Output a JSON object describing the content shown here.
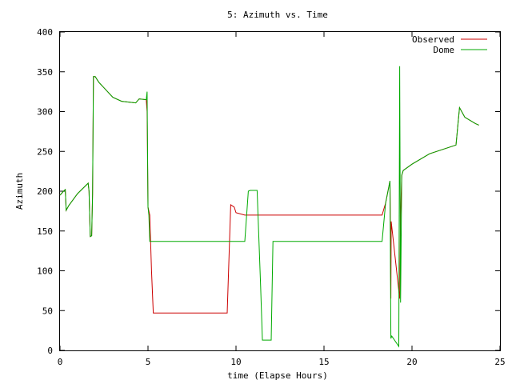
{
  "chart_data": {
    "type": "line",
    "title": "5: Azimuth vs. Time",
    "xlabel": "time (Elapse Hours)",
    "ylabel": "Azimuth",
    "xlim": [
      0,
      25
    ],
    "ylim": [
      0,
      400
    ],
    "xticks": [
      0,
      5,
      10,
      15,
      20,
      25
    ],
    "yticks": [
      0,
      50,
      100,
      150,
      200,
      250,
      300,
      350,
      400
    ],
    "grid": false,
    "legend_position": "top-right",
    "series": [
      {
        "name": "Observed",
        "color": "#cc0000",
        "x": [
          0.0,
          0.2,
          0.3,
          0.35,
          0.5,
          1.0,
          1.6,
          1.65,
          1.72,
          1.8,
          1.85,
          1.9,
          2.0,
          2.2,
          3.0,
          3.5,
          4.3,
          4.5,
          4.9,
          4.95,
          5.0,
          5.1,
          5.2,
          5.3,
          9.5,
          9.7,
          9.9,
          10.0,
          10.5,
          18.3,
          18.5,
          18.75,
          18.8,
          18.82,
          19.3,
          19.35,
          19.42,
          19.5,
          20.0,
          21.0,
          22.5,
          22.7,
          23.0,
          23.6,
          23.8
        ],
        "y": [
          195,
          200,
          202,
          176,
          182,
          197,
          210,
          200,
          143,
          144,
          196,
          344,
          344,
          337,
          318,
          313,
          311,
          316,
          315,
          300,
          180,
          170,
          100,
          47,
          47,
          183,
          180,
          173,
          170,
          170,
          185,
          213,
          65,
          162,
          65,
          170,
          220,
          226,
          234,
          247,
          258,
          305,
          293,
          285,
          283
        ]
      },
      {
        "name": "Dome",
        "color": "#00aa00",
        "x": [
          0.0,
          0.2,
          0.3,
          0.35,
          0.5,
          1.0,
          1.6,
          1.65,
          1.72,
          1.8,
          1.85,
          1.9,
          2.0,
          2.2,
          3.0,
          3.5,
          4.3,
          4.5,
          4.9,
          4.95,
          5.0,
          5.05,
          5.1,
          5.2,
          10.5,
          10.7,
          10.8,
          11.2,
          11.4,
          11.5,
          12.0,
          12.1,
          18.3,
          18.5,
          18.75,
          18.8,
          18.85,
          19.25,
          19.3,
          19.35,
          19.42,
          19.5,
          20.0,
          21.0,
          22.5,
          22.7,
          23.0,
          23.6,
          23.8
        ],
        "y": [
          195,
          200,
          202,
          176,
          182,
          197,
          210,
          200,
          143,
          144,
          196,
          344,
          344,
          337,
          318,
          313,
          311,
          316,
          315,
          325,
          180,
          170,
          137,
          137,
          137,
          200,
          201,
          201,
          80,
          13,
          13,
          137,
          137,
          185,
          213,
          15,
          18,
          5,
          357,
          60,
          220,
          226,
          234,
          247,
          258,
          305,
          293,
          285,
          283
        ]
      }
    ]
  }
}
